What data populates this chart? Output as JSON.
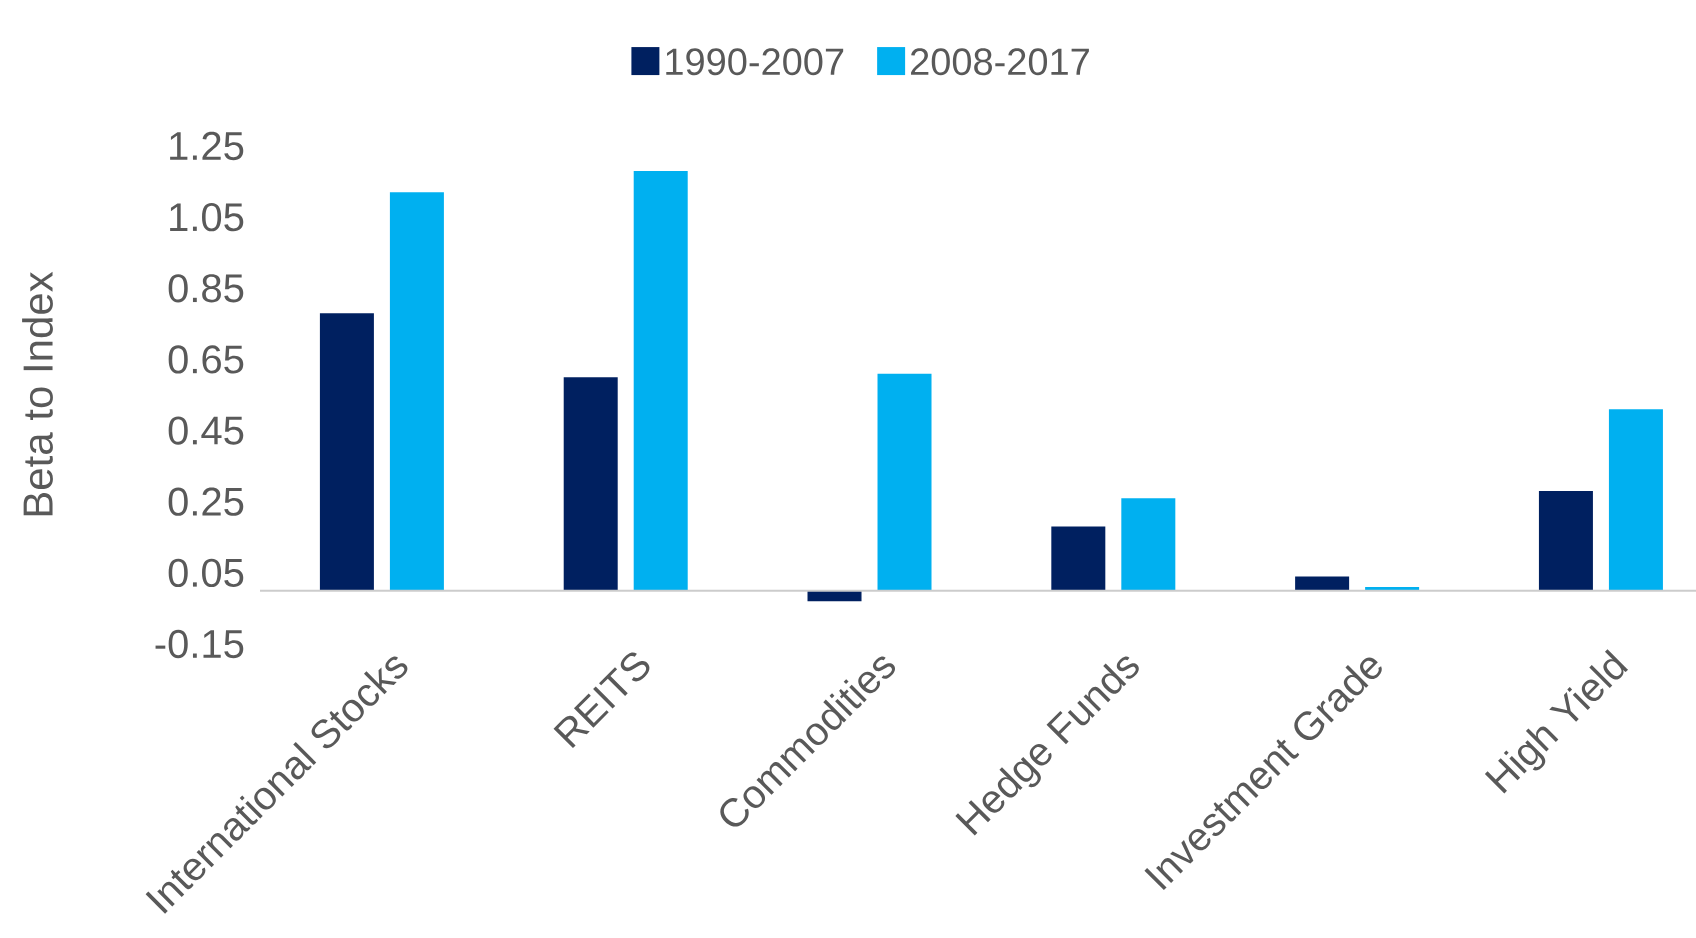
{
  "chart_data": {
    "type": "bar",
    "categories": [
      "International Stocks",
      "REITS",
      "Commodities",
      "Hedge Funds",
      "Investment Grade",
      "High Yield"
    ],
    "series": [
      {
        "name": "1990-2007",
        "color": "#002060",
        "values": [
          0.78,
          0.6,
          -0.03,
          0.18,
          0.04,
          0.28
        ]
      },
      {
        "name": "2008-2017",
        "color": "#00b0f0",
        "values": [
          1.12,
          1.18,
          0.61,
          0.26,
          0.01,
          0.51
        ]
      }
    ],
    "ylabel": "Beta to Index",
    "ylim": [
      -0.15,
      1.25
    ],
    "yticks": [
      -0.15,
      0.05,
      0.25,
      0.45,
      0.65,
      0.85,
      1.05,
      1.25
    ],
    "legend": "top"
  }
}
